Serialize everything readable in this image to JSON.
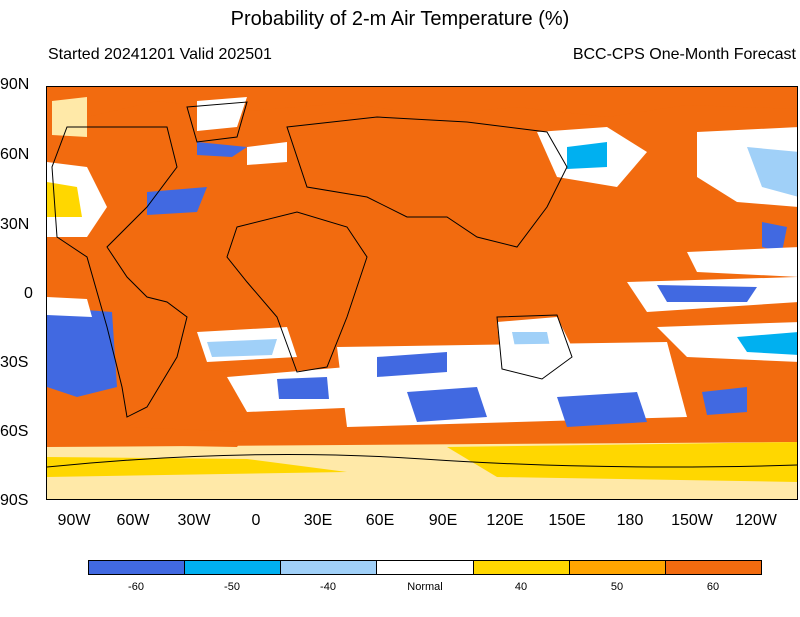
{
  "title": "Probability of 2-m Air Temperature (%)",
  "started_valid": "Started 20241201  Valid 202501",
  "model": "BCC-CPS One-Month Forecast",
  "lat_labels": [
    "90N",
    "60N",
    "30N",
    "0",
    "30S",
    "60S",
    "90S"
  ],
  "lon_labels": [
    "90W",
    "60W",
    "30W",
    "0",
    "30E",
    "60E",
    "90E",
    "120E",
    "150E",
    "180",
    "150W",
    "120W"
  ],
  "colorbar": {
    "colors": [
      "#4169e1",
      "#00b0f0",
      "#a0d0f8",
      "#ffffff",
      "#ffd700",
      "#ffa500",
      "#f26b0f"
    ],
    "labels": [
      "-60",
      "-50",
      "-40",
      "Normal",
      "40",
      "50",
      "60"
    ]
  },
  "palette": {
    "above_60": "#f26b0f",
    "above_50": "#ffa500",
    "above_40": "#ffd700",
    "normal": "#ffffff",
    "below_40": "#a0d0f8",
    "below_50": "#00b0f0",
    "below_60": "#4169e1"
  }
}
